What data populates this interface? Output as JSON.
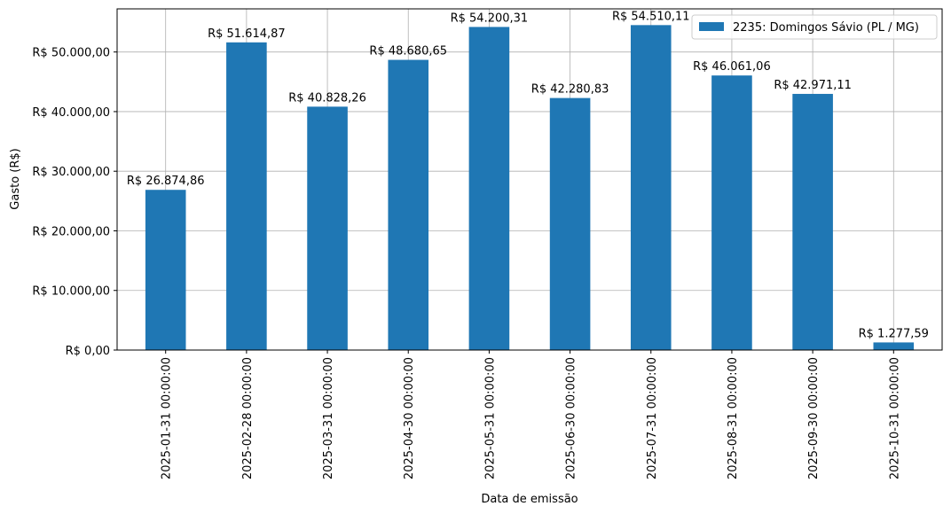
{
  "chart_data": {
    "type": "bar",
    "title": "",
    "xlabel": "Data de emissão",
    "ylabel": "Gasto (R$)",
    "categories": [
      "2025-01-31 00:00:00",
      "2025-02-28 00:00:00",
      "2025-03-31 00:00:00",
      "2025-04-30 00:00:00",
      "2025-05-31 00:00:00",
      "2025-06-30 00:00:00",
      "2025-07-31 00:00:00",
      "2025-08-31 00:00:00",
      "2025-09-30 00:00:00",
      "2025-10-31 00:00:00"
    ],
    "series": [
      {
        "name": "2235: Domingos Sávio (PL / MG)",
        "color": "#1f77b4",
        "values": [
          26874.86,
          51614.87,
          40828.26,
          48680.65,
          54200.31,
          42280.83,
          54510.11,
          46061.06,
          42971.11,
          1277.59
        ],
        "data_labels": [
          "R$ 26.874,86",
          "R$ 51.614,87",
          "R$ 40.828,26",
          "R$ 48.680,65",
          "R$ 54.200,31",
          "R$ 42.280,83",
          "R$ 54.510,11",
          "R$ 46.061,06",
          "R$ 42.971,11",
          "R$ 1.277,59"
        ]
      }
    ],
    "yticks": [
      0,
      10000,
      20000,
      30000,
      40000,
      50000
    ],
    "ytick_labels": [
      "R$ 0,00",
      "R$ 10.000,00",
      "R$ 20.000,00",
      "R$ 30.000,00",
      "R$ 40.000,00",
      "R$ 50.000,00"
    ],
    "ylim": [
      0,
      57235.62
    ],
    "grid": true,
    "legend_position": "top-right"
  }
}
